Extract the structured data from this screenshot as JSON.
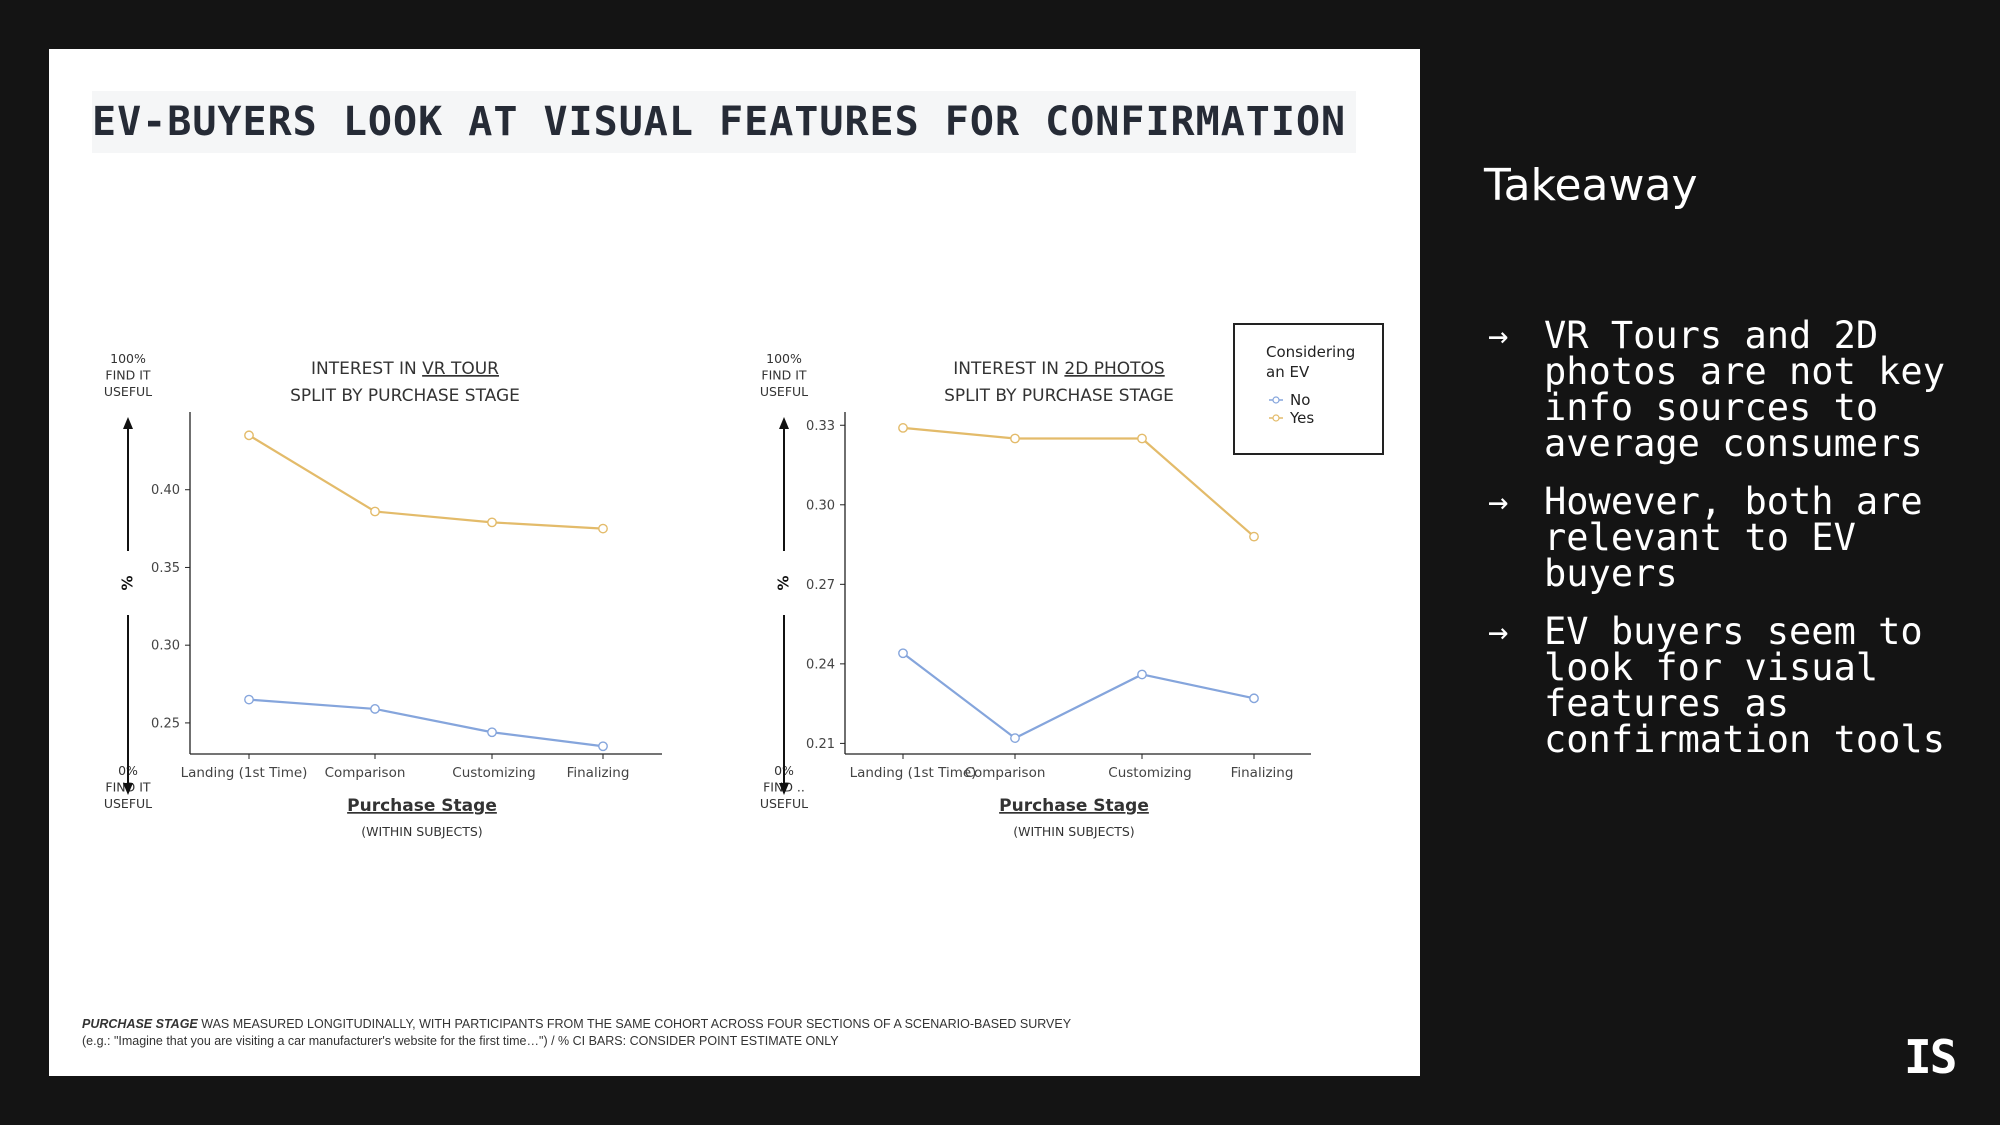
{
  "slide": {
    "title": "EV-BUYERS LOOK AT VISUAL FEATURES FOR CONFIRMATION",
    "footnote_em": "PURCHASE STAGE",
    "footnote_rest": " WAS MEASURED LONGITUDINALLY, WITH PARTICIPANTS FROM THE SAME COHORT ACROSS FOUR SECTIONS OF A SCENARIO-BASED SURVEY",
    "footnote_line2": "(e.g.: \"Imagine that you are visiting a car manufacturer's website for the first time…\") / % CI BARS: CONSIDER POINT ESTIMATE ONLY"
  },
  "sidebar": {
    "heading": "Takeaway",
    "bullets": [
      "VR Tours and 2D photos are not key info sources to average consumers",
      "However, both are relevant to EV buyers",
      "EV buyers seem to look for visual features as confirmation tools"
    ],
    "arrow": "→",
    "logo": "IS"
  },
  "colors": {
    "no": "#85a5dc",
    "yes": "#e3bb6a",
    "axis": "#222222"
  },
  "legend": {
    "title_line1": "Considering",
    "title_line2": "an EV",
    "items": [
      "No",
      "Yes"
    ]
  },
  "chart_data": [
    {
      "type": "line",
      "title_prefix": "INTEREST IN ",
      "title_underlined": "VR TOUR",
      "title_line2": "SPLIT BY PURCHASE STAGE",
      "top_label": [
        "100%",
        "FIND IT",
        "USEFUL"
      ],
      "bottom_label": [
        "0%",
        "FIND IT",
        "USEFUL"
      ],
      "ylabel": "%",
      "xlabel": "Purchase Stage",
      "xsublabel": "(WITHIN SUBJECTS)",
      "categories": [
        "Landing (1st Time)",
        "Comparison",
        "Customizing",
        "Finalizing"
      ],
      "ylim": [
        0.23,
        0.45
      ],
      "yticks": [
        0.25,
        0.3,
        0.35,
        0.4
      ],
      "ytick_labels": [
        "0.25",
        "0.30",
        "0.35",
        "0.40"
      ],
      "series": [
        {
          "name": "No",
          "values": [
            0.265,
            0.259,
            0.244,
            0.235
          ]
        },
        {
          "name": "Yes",
          "values": [
            0.435,
            0.386,
            0.379,
            0.375
          ]
        }
      ]
    },
    {
      "type": "line",
      "title_prefix": "INTEREST IN ",
      "title_underlined": "2D PHOTOS",
      "title_line2": "SPLIT BY PURCHASE STAGE",
      "top_label": [
        "100%",
        "FIND IT",
        "USEFUL"
      ],
      "bottom_label": [
        "0%",
        "FIND ..",
        "USEFUL"
      ],
      "ylabel": "%",
      "xlabel": "Purchase Stage",
      "xsublabel": "(WITHIN SUBJECTS)",
      "categories": [
        "Landing (1st Time)",
        "Comparison",
        "Customizing",
        "Finalizing"
      ],
      "ylim": [
        0.206,
        0.335
      ],
      "yticks": [
        0.21,
        0.24,
        0.27,
        0.3,
        0.33
      ],
      "ytick_labels": [
        "0.21",
        "0.24",
        "0.27",
        "0.30",
        "0.33"
      ],
      "series": [
        {
          "name": "No",
          "values": [
            0.244,
            0.212,
            0.236,
            0.227
          ]
        },
        {
          "name": "Yes",
          "values": [
            0.329,
            0.325,
            0.325,
            0.288
          ]
        }
      ]
    }
  ]
}
